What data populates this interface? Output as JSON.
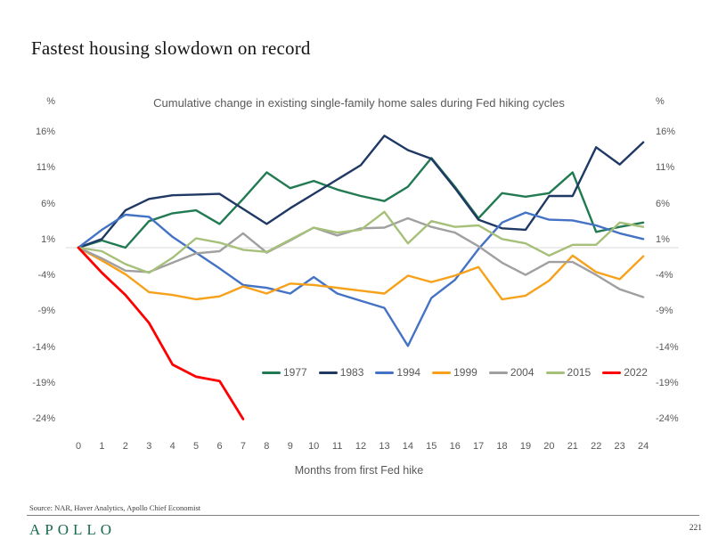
{
  "page": {
    "title": "Fastest housing slowdown on record",
    "source": "Source: NAR, Haver Analytics, Apollo Chief Economist",
    "logo": "APOLLO",
    "page_number": "221"
  },
  "chart_data": {
    "type": "line",
    "title": "Cumulative change in existing single-family home sales during Fed hiking cycles",
    "xlabel": "Months from first Fed hike",
    "ylabel_left": "%",
    "ylabel_right": "%",
    "x": [
      0,
      1,
      2,
      3,
      4,
      5,
      6,
      7,
      8,
      9,
      10,
      11,
      12,
      13,
      14,
      15,
      16,
      17,
      18,
      19,
      20,
      21,
      22,
      23,
      24
    ],
    "ytick_values": [
      16,
      11,
      6,
      1,
      -4,
      -9,
      -14,
      -19,
      -24
    ],
    "ytick_labels": [
      "16%",
      "11%",
      "6%",
      "1%",
      "-4%",
      "-9%",
      "-14%",
      "-19%",
      "-24%"
    ],
    "ylim": [
      -26,
      18
    ],
    "grid": "zero-line-only",
    "zero_line_color": "#d9d9d9",
    "legend_position": "inside-bottom-center",
    "series": [
      {
        "name": "1977",
        "color": "#217a52",
        "values": [
          0,
          1.0,
          0.0,
          3.7,
          4.8,
          5.2,
          3.3,
          6.8,
          10.5,
          8.3,
          9.3,
          8.1,
          7.2,
          6.5,
          8.5,
          12.5,
          8.5,
          4.1,
          7.6,
          7.1,
          7.6,
          10.5,
          2.2,
          2.9,
          3.5
        ]
      },
      {
        "name": "1983",
        "color": "#1f3864",
        "values": [
          0,
          1.2,
          5.2,
          6.8,
          7.3,
          7.4,
          7.5,
          5.4,
          3.3,
          5.5,
          7.5,
          9.5,
          11.5,
          15.6,
          13.6,
          12.4,
          8.3,
          3.9,
          2.7,
          2.5,
          7.2,
          7.2,
          14.0,
          11.6,
          14.7
        ]
      },
      {
        "name": "1994",
        "color": "#4472c4",
        "values": [
          0,
          2.5,
          4.6,
          4.3,
          1.5,
          -0.7,
          -2.9,
          -5.2,
          -5.6,
          -6.4,
          -4.1,
          -6.4,
          -7.4,
          -8.4,
          -13.7,
          -7.0,
          -4.5,
          -0.2,
          3.5,
          4.9,
          3.9,
          3.8,
          3.1,
          2.0,
          1.2
        ]
      },
      {
        "name": "1999",
        "color": "#f7a11a",
        "values": [
          0,
          -1.8,
          -3.7,
          -6.2,
          -6.6,
          -7.2,
          -6.8,
          -5.4,
          -6.4,
          -5.0,
          -5.2,
          -5.6,
          -6.0,
          -6.4,
          -3.9,
          -4.8,
          -3.9,
          -2.7,
          -7.2,
          -6.7,
          -4.6,
          -1.1,
          -3.4,
          -4.4,
          -1.2
        ]
      },
      {
        "name": "2004",
        "color": "#a0a0a0",
        "values": [
          0,
          -1.5,
          -3.2,
          -3.4,
          -2.1,
          -0.8,
          -0.5,
          2.0,
          -0.7,
          1.0,
          2.8,
          1.7,
          2.7,
          2.8,
          4.1,
          2.9,
          2.1,
          0.2,
          -2.1,
          -3.8,
          -2.0,
          -2.0,
          -3.8,
          -5.8,
          -6.9
        ]
      },
      {
        "name": "2015",
        "color": "#a6c07a",
        "values": [
          0,
          -0.5,
          -2.3,
          -3.5,
          -1.4,
          1.3,
          0.7,
          -0.3,
          -0.6,
          1.1,
          2.8,
          2.1,
          2.5,
          5.0,
          0.6,
          3.7,
          2.9,
          3.1,
          1.2,
          0.6,
          -1.1,
          0.4,
          0.4,
          3.5,
          2.9
        ]
      },
      {
        "name": "2022",
        "color": "#fe0000",
        "values": [
          0,
          -3.5,
          -6.6,
          -10.5,
          -16.3,
          -18.0,
          -18.6,
          -23.9
        ]
      }
    ]
  }
}
